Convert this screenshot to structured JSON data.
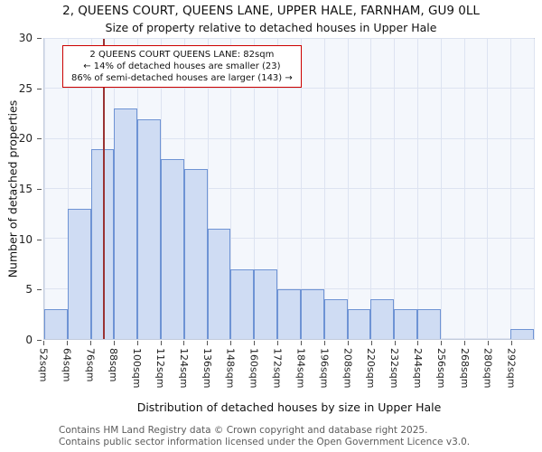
{
  "title": "2, QUEENS COURT, QUEENS LANE, UPPER HALE, FARNHAM, GU9 0LL",
  "subtitle": "Size of property relative to detached houses in Upper Hale",
  "chart_data": {
    "type": "bar",
    "title": "2, QUEENS COURT, QUEENS LANE, UPPER HALE, FARNHAM, GU9 0LL",
    "subtitle": "Size of property relative to detached houses in Upper Hale",
    "xlabel": "Distribution of detached houses by size in Upper Hale",
    "ylabel": "Number of detached properties",
    "categories": [
      "52sqm",
      "64sqm",
      "76sqm",
      "88sqm",
      "100sqm",
      "112sqm",
      "124sqm",
      "136sqm",
      "148sqm",
      "160sqm",
      "172sqm",
      "184sqm",
      "196sqm",
      "208sqm",
      "220sqm",
      "232sqm",
      "244sqm",
      "256sqm",
      "268sqm",
      "280sqm",
      "292sqm"
    ],
    "values": [
      3,
      13,
      19,
      23,
      22,
      18,
      17,
      11,
      7,
      7,
      5,
      5,
      4,
      3,
      4,
      3,
      3,
      0,
      0,
      0,
      1
    ],
    "bin_width_sqm": 12,
    "x_start_sqm": 52,
    "x_end_sqm": 304,
    "ylim": [
      0,
      30
    ],
    "yticks": [
      0,
      5,
      10,
      15,
      20,
      25,
      30
    ],
    "grid": true,
    "legend": "none",
    "marker_value_sqm": 82,
    "colors": {
      "bar_fill": "#cfdcf3",
      "bar_border": "#6e93d4",
      "marker": "#993333",
      "annotation_border": "#cc0000",
      "plot_background": "#f4f7fc",
      "gridline": "#dde3f1"
    },
    "annotation": {
      "line1": "2 QUEENS COURT QUEENS LANE: 82sqm",
      "line2": "← 14% of detached houses are smaller (23)",
      "line3": "86% of semi-detached houses are larger (143) →"
    }
  },
  "footer": {
    "line1": "Contains HM Land Registry data © Crown copyright and database right 2025.",
    "line2": "Contains public sector information licensed under the Open Government Licence v3.0."
  }
}
